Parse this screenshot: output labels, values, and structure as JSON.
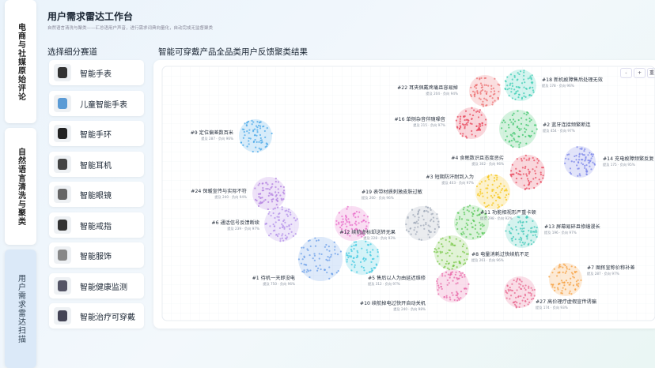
{
  "tabs": [
    "电商与社媒原始评论",
    "自然语言清洗与聚类",
    "用户需求雷达扫描"
  ],
  "header": {
    "title": "用户需求雷达工作台",
    "subtitle": "自然语言清洗与聚类——汇总语用户声音，进行需求词典向量化，自动完成无监督聚类"
  },
  "sidebar": {
    "title": "选择细分赛道",
    "items": [
      "智能手表",
      "儿童智能手表",
      "智能手环",
      "智能耳机",
      "智能眼镜",
      "智能戒指",
      "智能服饰",
      "智能健康监测",
      "智能治疗可穿戴"
    ]
  },
  "panel": {
    "title": "智能可穿戴产品全品类用户反馈聚类结果",
    "controls": [
      "-",
      "+",
      "重置"
    ],
    "clusters": [
      {
        "label": "#22 耳夹佩戴疼痛且容易掉",
        "stats": "提及 204 · 负向 94%"
      },
      {
        "label": "#18 新机故障售后处理无效",
        "stats": "提及 178 · 负向 96%"
      },
      {
        "label": "#16 单侧杂音伴随噪音",
        "stats": "提及 215 · 负向 97%"
      },
      {
        "label": "#2 蓝牙连接频繁断连",
        "stats": "提及 454 · 负向 97%"
      },
      {
        "label": "#9 定位偏差数百米",
        "stats": "提及 287 · 负向 96%"
      },
      {
        "label": "#4 食眠数识且态度恶劣",
        "stats": "提及 302 · 负向 96%"
      },
      {
        "label": "#14 充电故障频繁反复",
        "stats": "提及 175 · 负向 95%"
      },
      {
        "label": "#3 短期防汗耐到入为",
        "stats": "提及 403 · 负向 97%"
      },
      {
        "label": "#24 保暖宣传与实际不符",
        "stats": "提及 240 · 负向 94%"
      },
      {
        "label": "#19 表带材质刺激皮肤过敏",
        "stats": "提及 260 · 负向 96%"
      },
      {
        "label": "#11 功能相视形严重卡顿",
        "stats": "提及 298 · 负向 92%"
      },
      {
        "label": "#6 通话信号反馈断续",
        "stats": "提及 239 · 负向 97%"
      },
      {
        "label": "#13 屏幕易碎且修缮漫长",
        "stats": "提及 196 · 负向 97%"
      },
      {
        "label": "#12 续航虚标却送转无果",
        "stats": "提及 228 · 负向 93%"
      },
      {
        "label": "#8 电量消耗过快续航不足",
        "stats": "提及 261 · 负向 96%"
      },
      {
        "label": "#1 待机一天即没电",
        "stats": "提及 750 · 负向 96%"
      },
      {
        "label": "#5 售后以人为由延迟维修",
        "stats": "提及 312 · 负向 97%"
      },
      {
        "label": "#7 图挥宣称价称补差",
        "stats": "提及 287 · 负向 97%"
      },
      {
        "label": "#10 续航掉电过快开自动关机",
        "stats": "提及 240 · 负向 98%"
      },
      {
        "label": "#27 高价理疗虚假宣传诱骗",
        "stats": "提及 174 · 负向 93%"
      }
    ]
  }
}
